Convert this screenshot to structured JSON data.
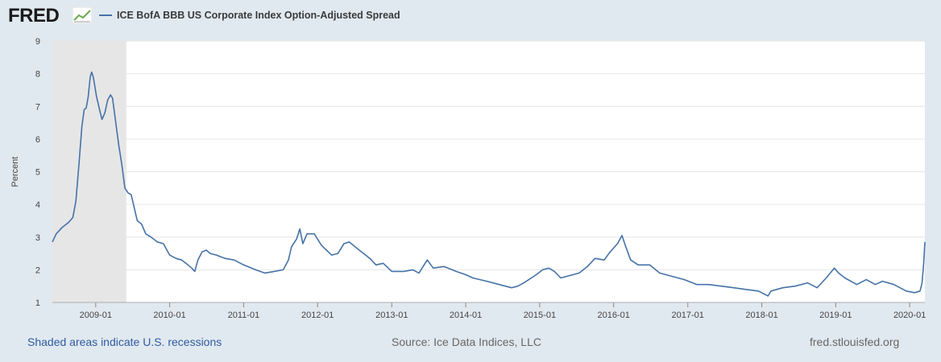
{
  "header": {
    "logo_text": "FRED",
    "series_name": "ICE BofA BBB US Corporate Index Option-Adjusted Spread"
  },
  "footer": {
    "recession_note": "Shaded areas indicate U.S. recessions",
    "source": "Source: Ice Data Indices, LLC",
    "site": "fred.stlouisfed.org"
  },
  "colors": {
    "line": "#4572a7",
    "recession_shade": "#e6e6e6",
    "grid": "#e6e6e6"
  },
  "chart_data": {
    "type": "line",
    "title": "ICE BofA BBB US Corporate Index Option-Adjusted Spread",
    "ylabel": "Percent",
    "xlabel": "",
    "ylim": [
      1,
      9
    ],
    "yticks": [
      "1",
      "2",
      "3",
      "4",
      "5",
      "6",
      "7",
      "8",
      "9"
    ],
    "xticks": [
      "2009-01",
      "2010-01",
      "2011-01",
      "2012-01",
      "2013-01",
      "2014-01",
      "2015-01",
      "2016-01",
      "2017-01",
      "2018-01",
      "2019-01",
      "2020-01"
    ],
    "xrange": [
      "2008-06-01",
      "2020-03-16"
    ],
    "recessions": [
      [
        "2008-06-01",
        "2009-06-01"
      ]
    ],
    "grid": true,
    "series": [
      {
        "values": [
          [
            "2008-06-01",
            2.85
          ],
          [
            "2008-06-20",
            3.1
          ],
          [
            "2008-07-20",
            3.3
          ],
          [
            "2008-08-20",
            3.45
          ],
          [
            "2008-09-10",
            3.6
          ],
          [
            "2008-09-25",
            4.1
          ],
          [
            "2008-10-10",
            5.2
          ],
          [
            "2008-10-25",
            6.4
          ],
          [
            "2008-11-05",
            6.9
          ],
          [
            "2008-11-15",
            6.95
          ],
          [
            "2008-11-25",
            7.3
          ],
          [
            "2008-12-05",
            7.9
          ],
          [
            "2008-12-12",
            8.05
          ],
          [
            "2008-12-20",
            7.9
          ],
          [
            "2009-01-05",
            7.3
          ],
          [
            "2009-01-20",
            6.9
          ],
          [
            "2009-02-01",
            6.6
          ],
          [
            "2009-02-15",
            6.8
          ],
          [
            "2009-03-01",
            7.2
          ],
          [
            "2009-03-15",
            7.35
          ],
          [
            "2009-03-25",
            7.25
          ],
          [
            "2009-04-10",
            6.5
          ],
          [
            "2009-04-25",
            5.8
          ],
          [
            "2009-05-10",
            5.2
          ],
          [
            "2009-05-25",
            4.5
          ],
          [
            "2009-06-10",
            4.35
          ],
          [
            "2009-06-25",
            4.3
          ],
          [
            "2009-07-10",
            3.9
          ],
          [
            "2009-07-25",
            3.5
          ],
          [
            "2009-08-15",
            3.4
          ],
          [
            "2009-09-05",
            3.1
          ],
          [
            "2009-10-01",
            3.0
          ],
          [
            "2009-11-01",
            2.85
          ],
          [
            "2009-12-01",
            2.8
          ],
          [
            "2010-01-01",
            2.45
          ],
          [
            "2010-02-01",
            2.35
          ],
          [
            "2010-03-01",
            2.3
          ],
          [
            "2010-04-01",
            2.15
          ],
          [
            "2010-04-20",
            2.05
          ],
          [
            "2010-05-05",
            1.95
          ],
          [
            "2010-05-20",
            2.3
          ],
          [
            "2010-06-10",
            2.55
          ],
          [
            "2010-07-01",
            2.6
          ],
          [
            "2010-07-20",
            2.5
          ],
          [
            "2010-08-20",
            2.45
          ],
          [
            "2010-10-01",
            2.35
          ],
          [
            "2010-11-15",
            2.3
          ],
          [
            "2011-01-01",
            2.15
          ],
          [
            "2011-03-01",
            2.0
          ],
          [
            "2011-04-15",
            1.9
          ],
          [
            "2011-06-01",
            1.95
          ],
          [
            "2011-07-15",
            2.0
          ],
          [
            "2011-08-10",
            2.3
          ],
          [
            "2011-08-25",
            2.7
          ],
          [
            "2011-09-20",
            2.95
          ],
          [
            "2011-10-05",
            3.25
          ],
          [
            "2011-10-20",
            2.8
          ],
          [
            "2011-11-10",
            3.1
          ],
          [
            "2011-12-15",
            3.1
          ],
          [
            "2012-01-20",
            2.75
          ],
          [
            "2012-03-10",
            2.45
          ],
          [
            "2012-04-10",
            2.5
          ],
          [
            "2012-05-10",
            2.8
          ],
          [
            "2012-06-05",
            2.85
          ],
          [
            "2012-07-15",
            2.65
          ],
          [
            "2012-09-15",
            2.35
          ],
          [
            "2012-10-15",
            2.15
          ],
          [
            "2012-11-20",
            2.2
          ],
          [
            "2013-01-01",
            1.95
          ],
          [
            "2013-03-01",
            1.95
          ],
          [
            "2013-04-15",
            2.0
          ],
          [
            "2013-05-15",
            1.9
          ],
          [
            "2013-06-25",
            2.3
          ],
          [
            "2013-07-25",
            2.05
          ],
          [
            "2013-09-15",
            2.1
          ],
          [
            "2013-11-15",
            1.95
          ],
          [
            "2014-01-01",
            1.85
          ],
          [
            "2014-02-05",
            1.75
          ],
          [
            "2014-04-15",
            1.65
          ],
          [
            "2014-06-15",
            1.55
          ],
          [
            "2014-08-15",
            1.45
          ],
          [
            "2014-09-15",
            1.5
          ],
          [
            "2014-10-15",
            1.6
          ],
          [
            "2014-12-15",
            1.85
          ],
          [
            "2015-01-15",
            2.0
          ],
          [
            "2015-02-15",
            2.05
          ],
          [
            "2015-03-15",
            1.95
          ],
          [
            "2015-04-15",
            1.75
          ],
          [
            "2015-05-15",
            1.8
          ],
          [
            "2015-07-15",
            1.9
          ],
          [
            "2015-08-25",
            2.1
          ],
          [
            "2015-10-01",
            2.35
          ],
          [
            "2015-11-15",
            2.3
          ],
          [
            "2015-12-15",
            2.55
          ],
          [
            "2016-01-20",
            2.8
          ],
          [
            "2016-02-11",
            3.05
          ],
          [
            "2016-03-01",
            2.7
          ],
          [
            "2016-03-25",
            2.3
          ],
          [
            "2016-05-01",
            2.15
          ],
          [
            "2016-06-27",
            2.15
          ],
          [
            "2016-08-15",
            1.9
          ],
          [
            "2016-10-15",
            1.8
          ],
          [
            "2016-12-15",
            1.7
          ],
          [
            "2017-02-15",
            1.55
          ],
          [
            "2017-04-15",
            1.55
          ],
          [
            "2017-06-15",
            1.5
          ],
          [
            "2017-08-15",
            1.45
          ],
          [
            "2017-10-15",
            1.4
          ],
          [
            "2017-12-15",
            1.35
          ],
          [
            "2018-02-01",
            1.2
          ],
          [
            "2018-02-15",
            1.35
          ],
          [
            "2018-04-15",
            1.45
          ],
          [
            "2018-06-15",
            1.5
          ],
          [
            "2018-08-15",
            1.6
          ],
          [
            "2018-10-01",
            1.45
          ],
          [
            "2018-11-15",
            1.75
          ],
          [
            "2018-12-25",
            2.05
          ],
          [
            "2019-01-15",
            1.9
          ],
          [
            "2019-02-15",
            1.75
          ],
          [
            "2019-04-15",
            1.55
          ],
          [
            "2019-06-01",
            1.7
          ],
          [
            "2019-07-15",
            1.55
          ],
          [
            "2019-08-20",
            1.65
          ],
          [
            "2019-10-15",
            1.55
          ],
          [
            "2019-12-15",
            1.35
          ],
          [
            "2020-01-25",
            1.3
          ],
          [
            "2020-02-21",
            1.35
          ],
          [
            "2020-03-02",
            1.6
          ],
          [
            "2020-03-10",
            2.2
          ],
          [
            "2020-03-16",
            2.85
          ]
        ]
      }
    ]
  }
}
